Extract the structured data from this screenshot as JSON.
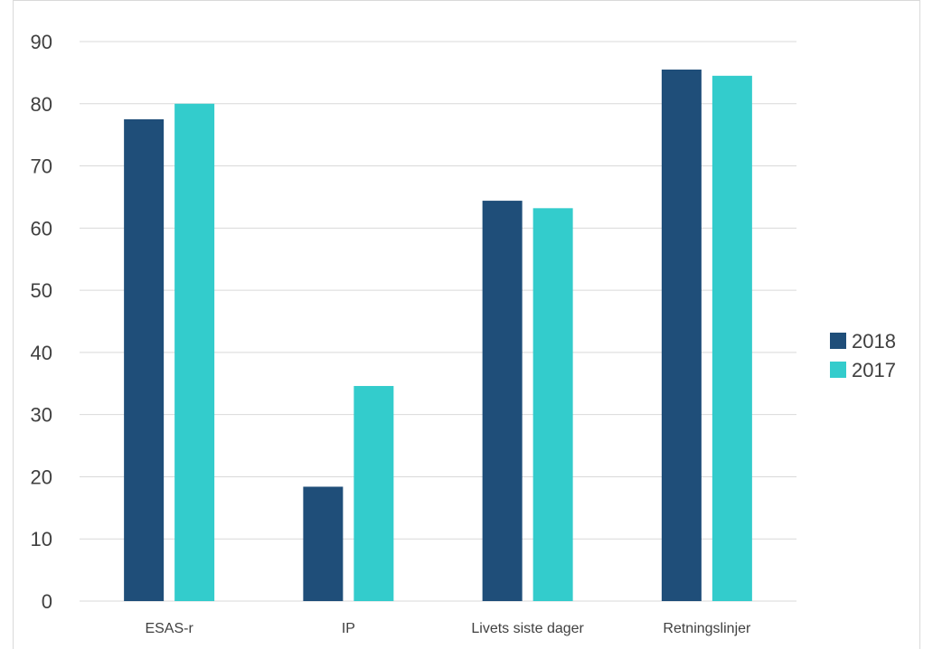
{
  "chart_data": {
    "type": "bar",
    "title": "",
    "xlabel": "",
    "ylabel": "",
    "categories": [
      "ESAS-r",
      "IP",
      "Livets siste dager",
      "Retningslinjer"
    ],
    "series": [
      {
        "name": "2018",
        "color": "#1f4e79",
        "values": [
          77.5,
          18.4,
          64.4,
          85.5
        ]
      },
      {
        "name": "2017",
        "color": "#33cccc",
        "values": [
          80.0,
          34.6,
          63.2,
          84.5
        ]
      }
    ],
    "ylim": [
      0,
      90
    ],
    "yticks": [
      0,
      10,
      20,
      30,
      40,
      50,
      60,
      70,
      80,
      90
    ],
    "grid": true,
    "legend_position": "right"
  }
}
